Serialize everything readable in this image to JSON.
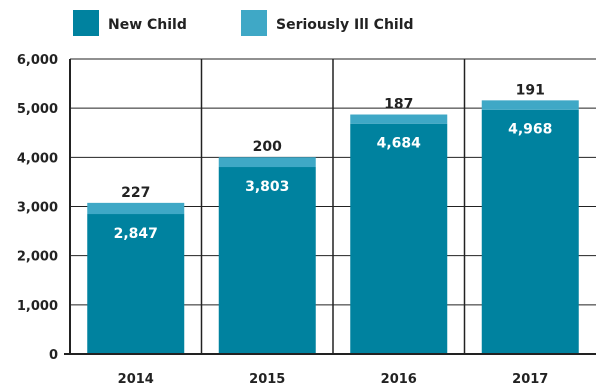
{
  "chart_data": {
    "type": "bar",
    "stacked": true,
    "categories": [
      "2014",
      "2015",
      "2016",
      "2017"
    ],
    "series": [
      {
        "name": "New Child",
        "values": [
          2847,
          3803,
          4684,
          4968
        ],
        "color": "#00829f"
      },
      {
        "name": "Seriously Ill Child",
        "values": [
          227,
          200,
          187,
          191
        ],
        "color": "#3fa8c6"
      }
    ],
    "value_labels": {
      "New Child": [
        "2,847",
        "3,803",
        "4,684",
        "4,968"
      ],
      "Seriously Ill Child": [
        "227",
        "200",
        "187",
        "191"
      ]
    },
    "y_ticks": [
      "0",
      "1,000",
      "2,000",
      "3,000",
      "4,000",
      "5,000",
      "6,000"
    ],
    "ylim": [
      0,
      6000
    ],
    "grid": true,
    "legend": "top-left"
  }
}
